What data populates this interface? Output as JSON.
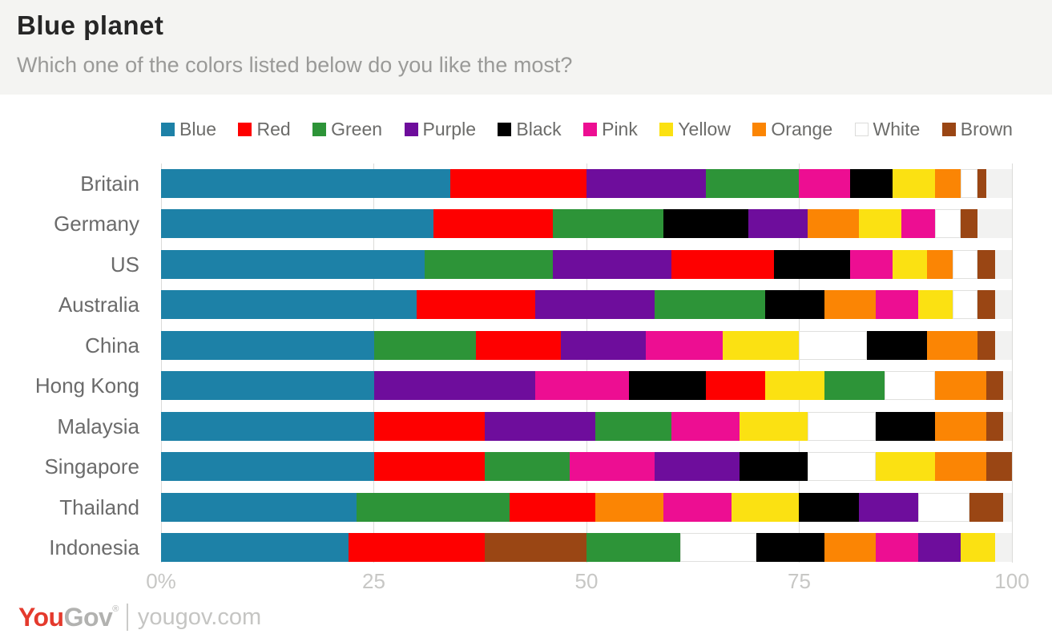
{
  "header": {
    "title": "Blue planet",
    "subtitle": "Which one of the colors listed below do you like the most?"
  },
  "chart_data": {
    "type": "bar",
    "stacked": true,
    "orientation": "horizontal",
    "title": "Blue planet",
    "question": "Which one of the colors listed below do you like the most?",
    "unit": "percent",
    "xlim": [
      0,
      100
    ],
    "x_ticks": [
      "0%",
      "25",
      "50",
      "75",
      "100"
    ],
    "x_tick_values": [
      0,
      25,
      50,
      75,
      100
    ],
    "grid": true,
    "legend_position": "top",
    "legend": [
      "Blue",
      "Red",
      "Green",
      "Purple",
      "Black",
      "Pink",
      "Yellow",
      "Orange",
      "White",
      "Brown"
    ],
    "palette": {
      "Blue": "#1d81a7",
      "Red": "#fe0000",
      "Green": "#2d9438",
      "Purple": "#6e0d9c",
      "Black": "#000000",
      "Pink": "#ed0e92",
      "Yellow": "#fbe112",
      "Orange": "#fb8504",
      "White": "#ffffff",
      "Brown": "#9a4614"
    },
    "track_color": "#f2f2f1",
    "categories": [
      "Britain",
      "Germany",
      "US",
      "Australia",
      "China",
      "Hong Kong",
      "Malaysia",
      "Singapore",
      "Thailand",
      "Indonesia"
    ],
    "rows": [
      {
        "country": "Britain",
        "segments": [
          {
            "color": "Blue",
            "value": 34
          },
          {
            "color": "Red",
            "value": 16
          },
          {
            "color": "Purple",
            "value": 14
          },
          {
            "color": "Green",
            "value": 11
          },
          {
            "color": "Pink",
            "value": 6
          },
          {
            "color": "Black",
            "value": 5
          },
          {
            "color": "Yellow",
            "value": 5
          },
          {
            "color": "Orange",
            "value": 3
          },
          {
            "color": "White",
            "value": 2
          },
          {
            "color": "Brown",
            "value": 1
          }
        ]
      },
      {
        "country": "Germany",
        "segments": [
          {
            "color": "Blue",
            "value": 32
          },
          {
            "color": "Red",
            "value": 14
          },
          {
            "color": "Green",
            "value": 13
          },
          {
            "color": "Black",
            "value": 10
          },
          {
            "color": "Purple",
            "value": 7
          },
          {
            "color": "Orange",
            "value": 6
          },
          {
            "color": "Yellow",
            "value": 5
          },
          {
            "color": "Pink",
            "value": 4
          },
          {
            "color": "White",
            "value": 3
          },
          {
            "color": "Brown",
            "value": 2
          }
        ]
      },
      {
        "country": "US",
        "segments": [
          {
            "color": "Blue",
            "value": 31
          },
          {
            "color": "Green",
            "value": 15
          },
          {
            "color": "Purple",
            "value": 14
          },
          {
            "color": "Red",
            "value": 12
          },
          {
            "color": "Black",
            "value": 9
          },
          {
            "color": "Pink",
            "value": 5
          },
          {
            "color": "Yellow",
            "value": 4
          },
          {
            "color": "Orange",
            "value": 3
          },
          {
            "color": "White",
            "value": 3
          },
          {
            "color": "Brown",
            "value": 2
          }
        ]
      },
      {
        "country": "Australia",
        "segments": [
          {
            "color": "Blue",
            "value": 30
          },
          {
            "color": "Red",
            "value": 14
          },
          {
            "color": "Purple",
            "value": 14
          },
          {
            "color": "Green",
            "value": 13
          },
          {
            "color": "Black",
            "value": 7
          },
          {
            "color": "Orange",
            "value": 6
          },
          {
            "color": "Pink",
            "value": 5
          },
          {
            "color": "Yellow",
            "value": 4
          },
          {
            "color": "White",
            "value": 3
          },
          {
            "color": "Brown",
            "value": 2
          }
        ]
      },
      {
        "country": "China",
        "segments": [
          {
            "color": "Blue",
            "value": 25
          },
          {
            "color": "Green",
            "value": 12
          },
          {
            "color": "Red",
            "value": 10
          },
          {
            "color": "Purple",
            "value": 10
          },
          {
            "color": "Pink",
            "value": 9
          },
          {
            "color": "Yellow",
            "value": 9
          },
          {
            "color": "White",
            "value": 8
          },
          {
            "color": "Black",
            "value": 7
          },
          {
            "color": "Orange",
            "value": 6
          },
          {
            "color": "Brown",
            "value": 2
          }
        ]
      },
      {
        "country": "Hong Kong",
        "segments": [
          {
            "color": "Blue",
            "value": 25
          },
          {
            "color": "Purple",
            "value": 19
          },
          {
            "color": "Pink",
            "value": 11
          },
          {
            "color": "Black",
            "value": 9
          },
          {
            "color": "Red",
            "value": 7
          },
          {
            "color": "Yellow",
            "value": 7
          },
          {
            "color": "Green",
            "value": 7
          },
          {
            "color": "White",
            "value": 6
          },
          {
            "color": "Orange",
            "value": 6
          },
          {
            "color": "Brown",
            "value": 2
          }
        ]
      },
      {
        "country": "Malaysia",
        "segments": [
          {
            "color": "Blue",
            "value": 25
          },
          {
            "color": "Red",
            "value": 13
          },
          {
            "color": "Purple",
            "value": 13
          },
          {
            "color": "Green",
            "value": 9
          },
          {
            "color": "Pink",
            "value": 8
          },
          {
            "color": "Yellow",
            "value": 8
          },
          {
            "color": "White",
            "value": 8
          },
          {
            "color": "Black",
            "value": 7
          },
          {
            "color": "Orange",
            "value": 6
          },
          {
            "color": "Brown",
            "value": 2
          }
        ]
      },
      {
        "country": "Singapore",
        "segments": [
          {
            "color": "Blue",
            "value": 25
          },
          {
            "color": "Red",
            "value": 13
          },
          {
            "color": "Green",
            "value": 10
          },
          {
            "color": "Pink",
            "value": 10
          },
          {
            "color": "Purple",
            "value": 10
          },
          {
            "color": "Black",
            "value": 8
          },
          {
            "color": "White",
            "value": 8
          },
          {
            "color": "Yellow",
            "value": 7
          },
          {
            "color": "Orange",
            "value": 6
          },
          {
            "color": "Brown",
            "value": 3
          }
        ]
      },
      {
        "country": "Thailand",
        "segments": [
          {
            "color": "Blue",
            "value": 23
          },
          {
            "color": "Green",
            "value": 18
          },
          {
            "color": "Red",
            "value": 10
          },
          {
            "color": "Orange",
            "value": 8
          },
          {
            "color": "Pink",
            "value": 8
          },
          {
            "color": "Yellow",
            "value": 8
          },
          {
            "color": "Black",
            "value": 7
          },
          {
            "color": "Purple",
            "value": 7
          },
          {
            "color": "White",
            "value": 6
          },
          {
            "color": "Brown",
            "value": 4
          }
        ]
      },
      {
        "country": "Indonesia",
        "segments": [
          {
            "color": "Blue",
            "value": 22
          },
          {
            "color": "Red",
            "value": 16
          },
          {
            "color": "Brown",
            "value": 12
          },
          {
            "color": "Green",
            "value": 11
          },
          {
            "color": "White",
            "value": 9
          },
          {
            "color": "Black",
            "value": 8
          },
          {
            "color": "Orange",
            "value": 6
          },
          {
            "color": "Pink",
            "value": 5
          },
          {
            "color": "Purple",
            "value": 5
          },
          {
            "color": "Yellow",
            "value": 4
          }
        ]
      }
    ]
  },
  "footer": {
    "brand_you": "You",
    "brand_gov": "Gov",
    "registered_mark": "®",
    "website": "yougov.com"
  }
}
